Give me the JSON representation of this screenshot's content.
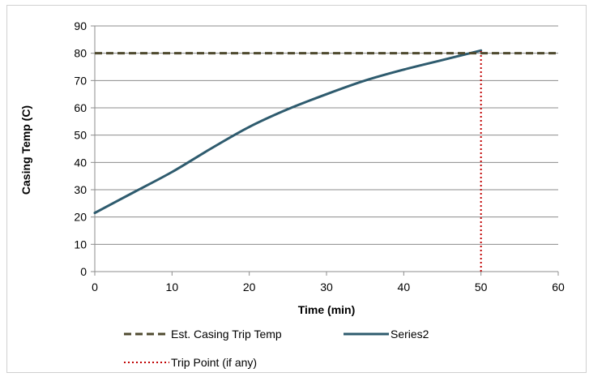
{
  "chart_data": {
    "type": "line",
    "title": "",
    "xlabel": "Time (min)",
    "ylabel": "Casing Temp (C)",
    "xlim": [
      0,
      60
    ],
    "ylim": [
      0,
      90
    ],
    "xticks": [
      0,
      10,
      20,
      30,
      40,
      50,
      60
    ],
    "yticks": [
      0,
      10,
      20,
      30,
      40,
      50,
      60,
      70,
      80,
      90
    ],
    "grid": "horizontal",
    "legend_position": "bottom",
    "series": [
      {
        "name": "Est. Casing Trip Temp",
        "style": "dashed",
        "color": "#4f4a2f",
        "x": [
          0,
          60
        ],
        "y": [
          80,
          80
        ]
      },
      {
        "name": "Series2",
        "style": "solid",
        "color": "#2e5b6e",
        "x": [
          0,
          5,
          10,
          15,
          20,
          25,
          30,
          35,
          40,
          45,
          50
        ],
        "y": [
          21.5,
          29,
          36.5,
          45,
          53,
          59.5,
          65,
          70,
          74,
          77.5,
          81
        ]
      },
      {
        "name": "Trip Point (if any)",
        "style": "dotted",
        "color": "#c00000",
        "x": [
          50,
          50
        ],
        "y": [
          0,
          81
        ]
      }
    ]
  }
}
